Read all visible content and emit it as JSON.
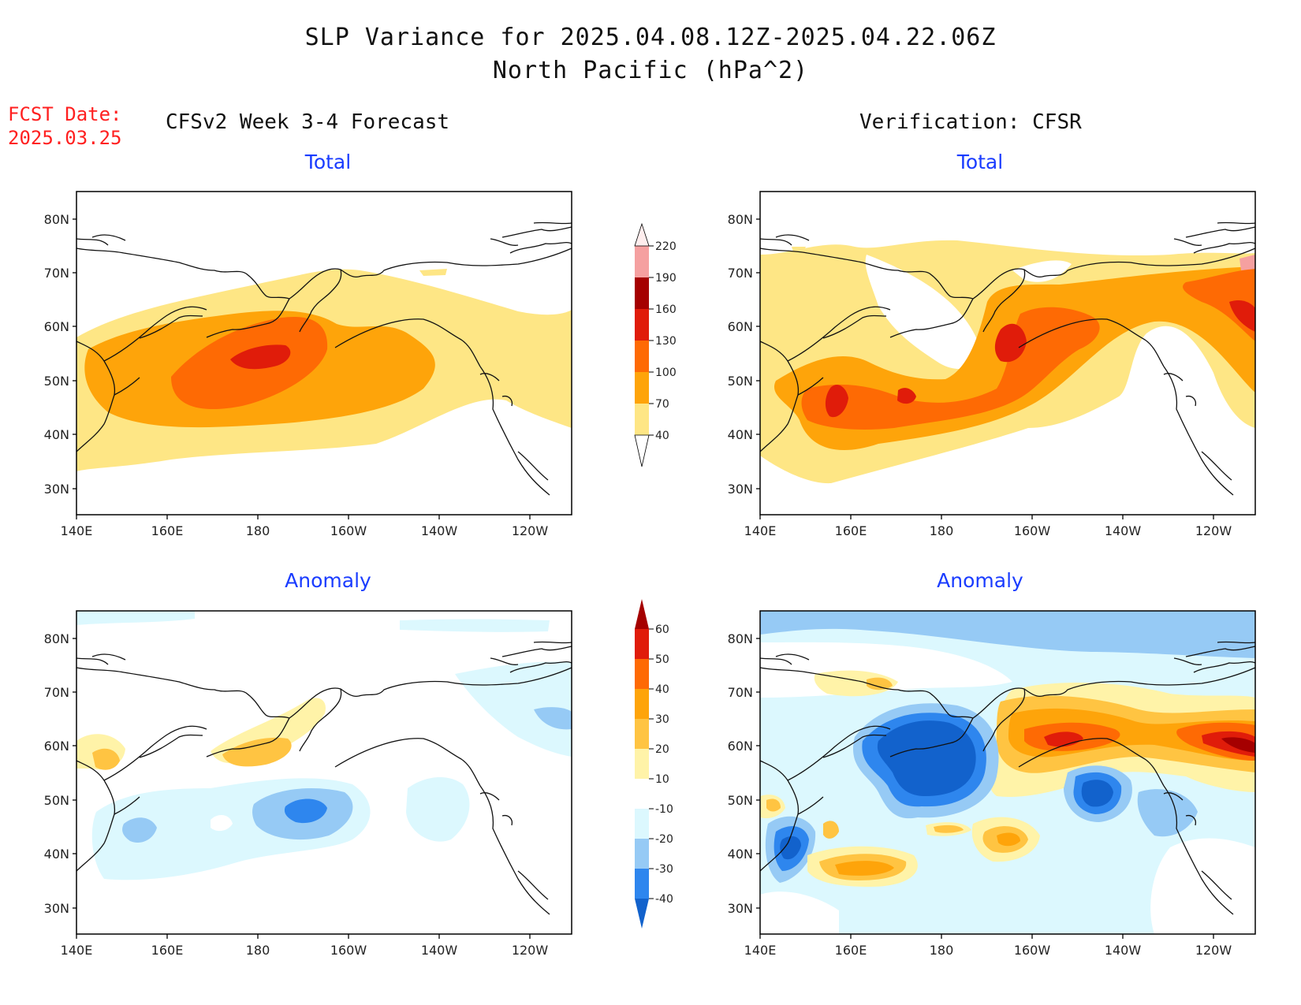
{
  "title": {
    "line1": "SLP Variance for 2025.04.08.12Z-2025.04.22.06Z",
    "line2": "North Pacific (hPa^2)"
  },
  "fcst_date": {
    "label": "FCST Date:",
    "value": "2025.03.25"
  },
  "columns": {
    "left": "CFSv2 Week 3-4 Forecast",
    "right": "Verification: CFSR"
  },
  "panels": {
    "fcst_total": "Total",
    "ver_total": "Total",
    "fcst_anom": "Anomaly",
    "ver_anom": "Anomaly"
  },
  "axes": {
    "lat_labels": [
      "80N",
      "70N",
      "60N",
      "50N",
      "40N",
      "30N"
    ],
    "lon_labels": [
      "140E",
      "160E",
      "180",
      "160W",
      "140W",
      "120W"
    ]
  },
  "colorbars": {
    "total": {
      "levels": [
        "40",
        "70",
        "100",
        "130",
        "160",
        "190",
        "220"
      ],
      "colors": [
        "#fee685",
        "#fea40a",
        "#fe6a04",
        "#e01c0a",
        "#a50000",
        "#f5a0a0",
        "#fbd6d6",
        "#ffeeee"
      ]
    },
    "anomaly": {
      "levels": [
        "-40",
        "-30",
        "-20",
        "-10",
        "10",
        "20",
        "30",
        "40",
        "50",
        "60"
      ],
      "colors": [
        "#1262cc",
        "#2e86ee",
        "#96caf5",
        "#dcf8fe",
        "#ffffff",
        "#fff3a8",
        "#ffc442",
        "#fea40a",
        "#fe6a04",
        "#e01c0a",
        "#a50000"
      ]
    }
  }
}
